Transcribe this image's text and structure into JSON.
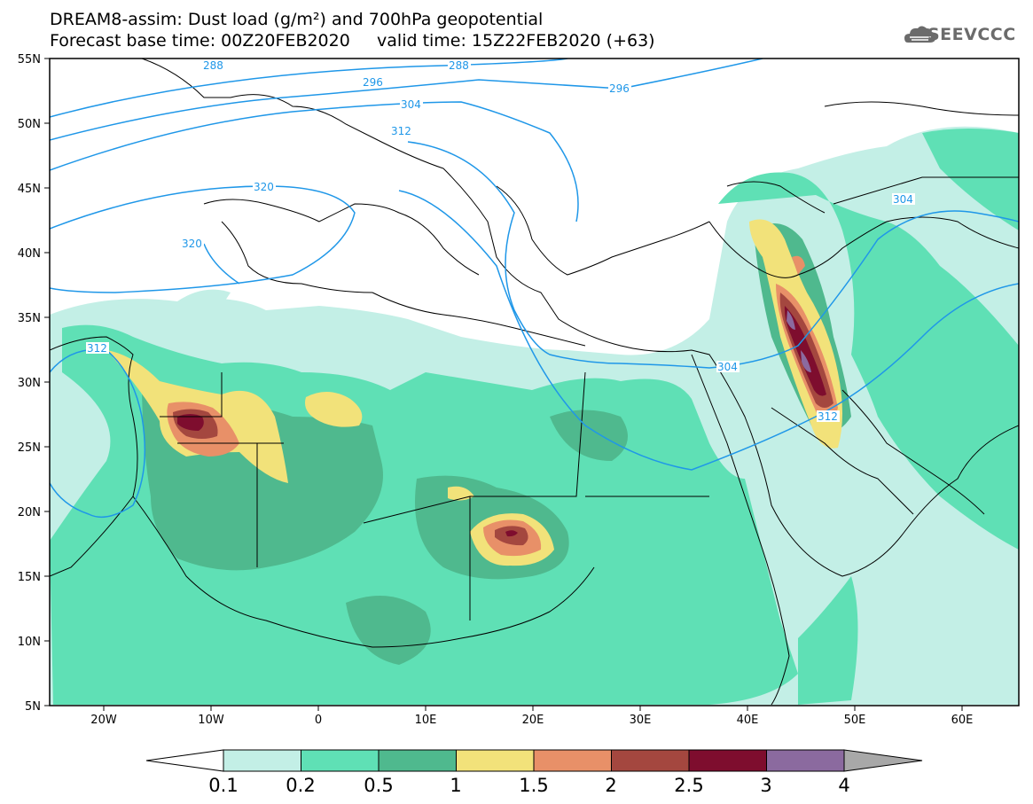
{
  "header": {
    "title_line1": "DREAM8-assim: Dust load (g/m²) and 700hPa geopotential",
    "title_line2": "Forecast base time: 00Z20FEB2020     valid time: 15Z22FEB2020 (+63)",
    "logo_text": "SEEVCCC"
  },
  "map": {
    "lat_labels": [
      "55N",
      "50N",
      "45N",
      "40N",
      "35N",
      "30N",
      "25N",
      "20N",
      "15N",
      "10N",
      "5N"
    ],
    "lon_labels": [
      "20W",
      "10W",
      "0",
      "10E",
      "20E",
      "30E",
      "40E",
      "50E",
      "60E"
    ],
    "contour_labels": [
      "288",
      "288",
      "296",
      "296",
      "304",
      "312",
      "320",
      "320",
      "312",
      "304",
      "312",
      "304"
    ]
  },
  "colorbar": {
    "levels": [
      "0.1",
      "0.2",
      "0.5",
      "1",
      "1.5",
      "2",
      "2.5",
      "3",
      "4"
    ],
    "colors": [
      "#c3efe6",
      "#5fe0b5",
      "#4fb98e",
      "#f2e27a",
      "#e89068",
      "#a4473f",
      "#7e0d2e",
      "#8b6a9f"
    ],
    "under_color": "#ffffff",
    "over_color": "#a8a8a8"
  },
  "colors": {
    "contour": "#1f97e8",
    "coast": "#000000"
  }
}
